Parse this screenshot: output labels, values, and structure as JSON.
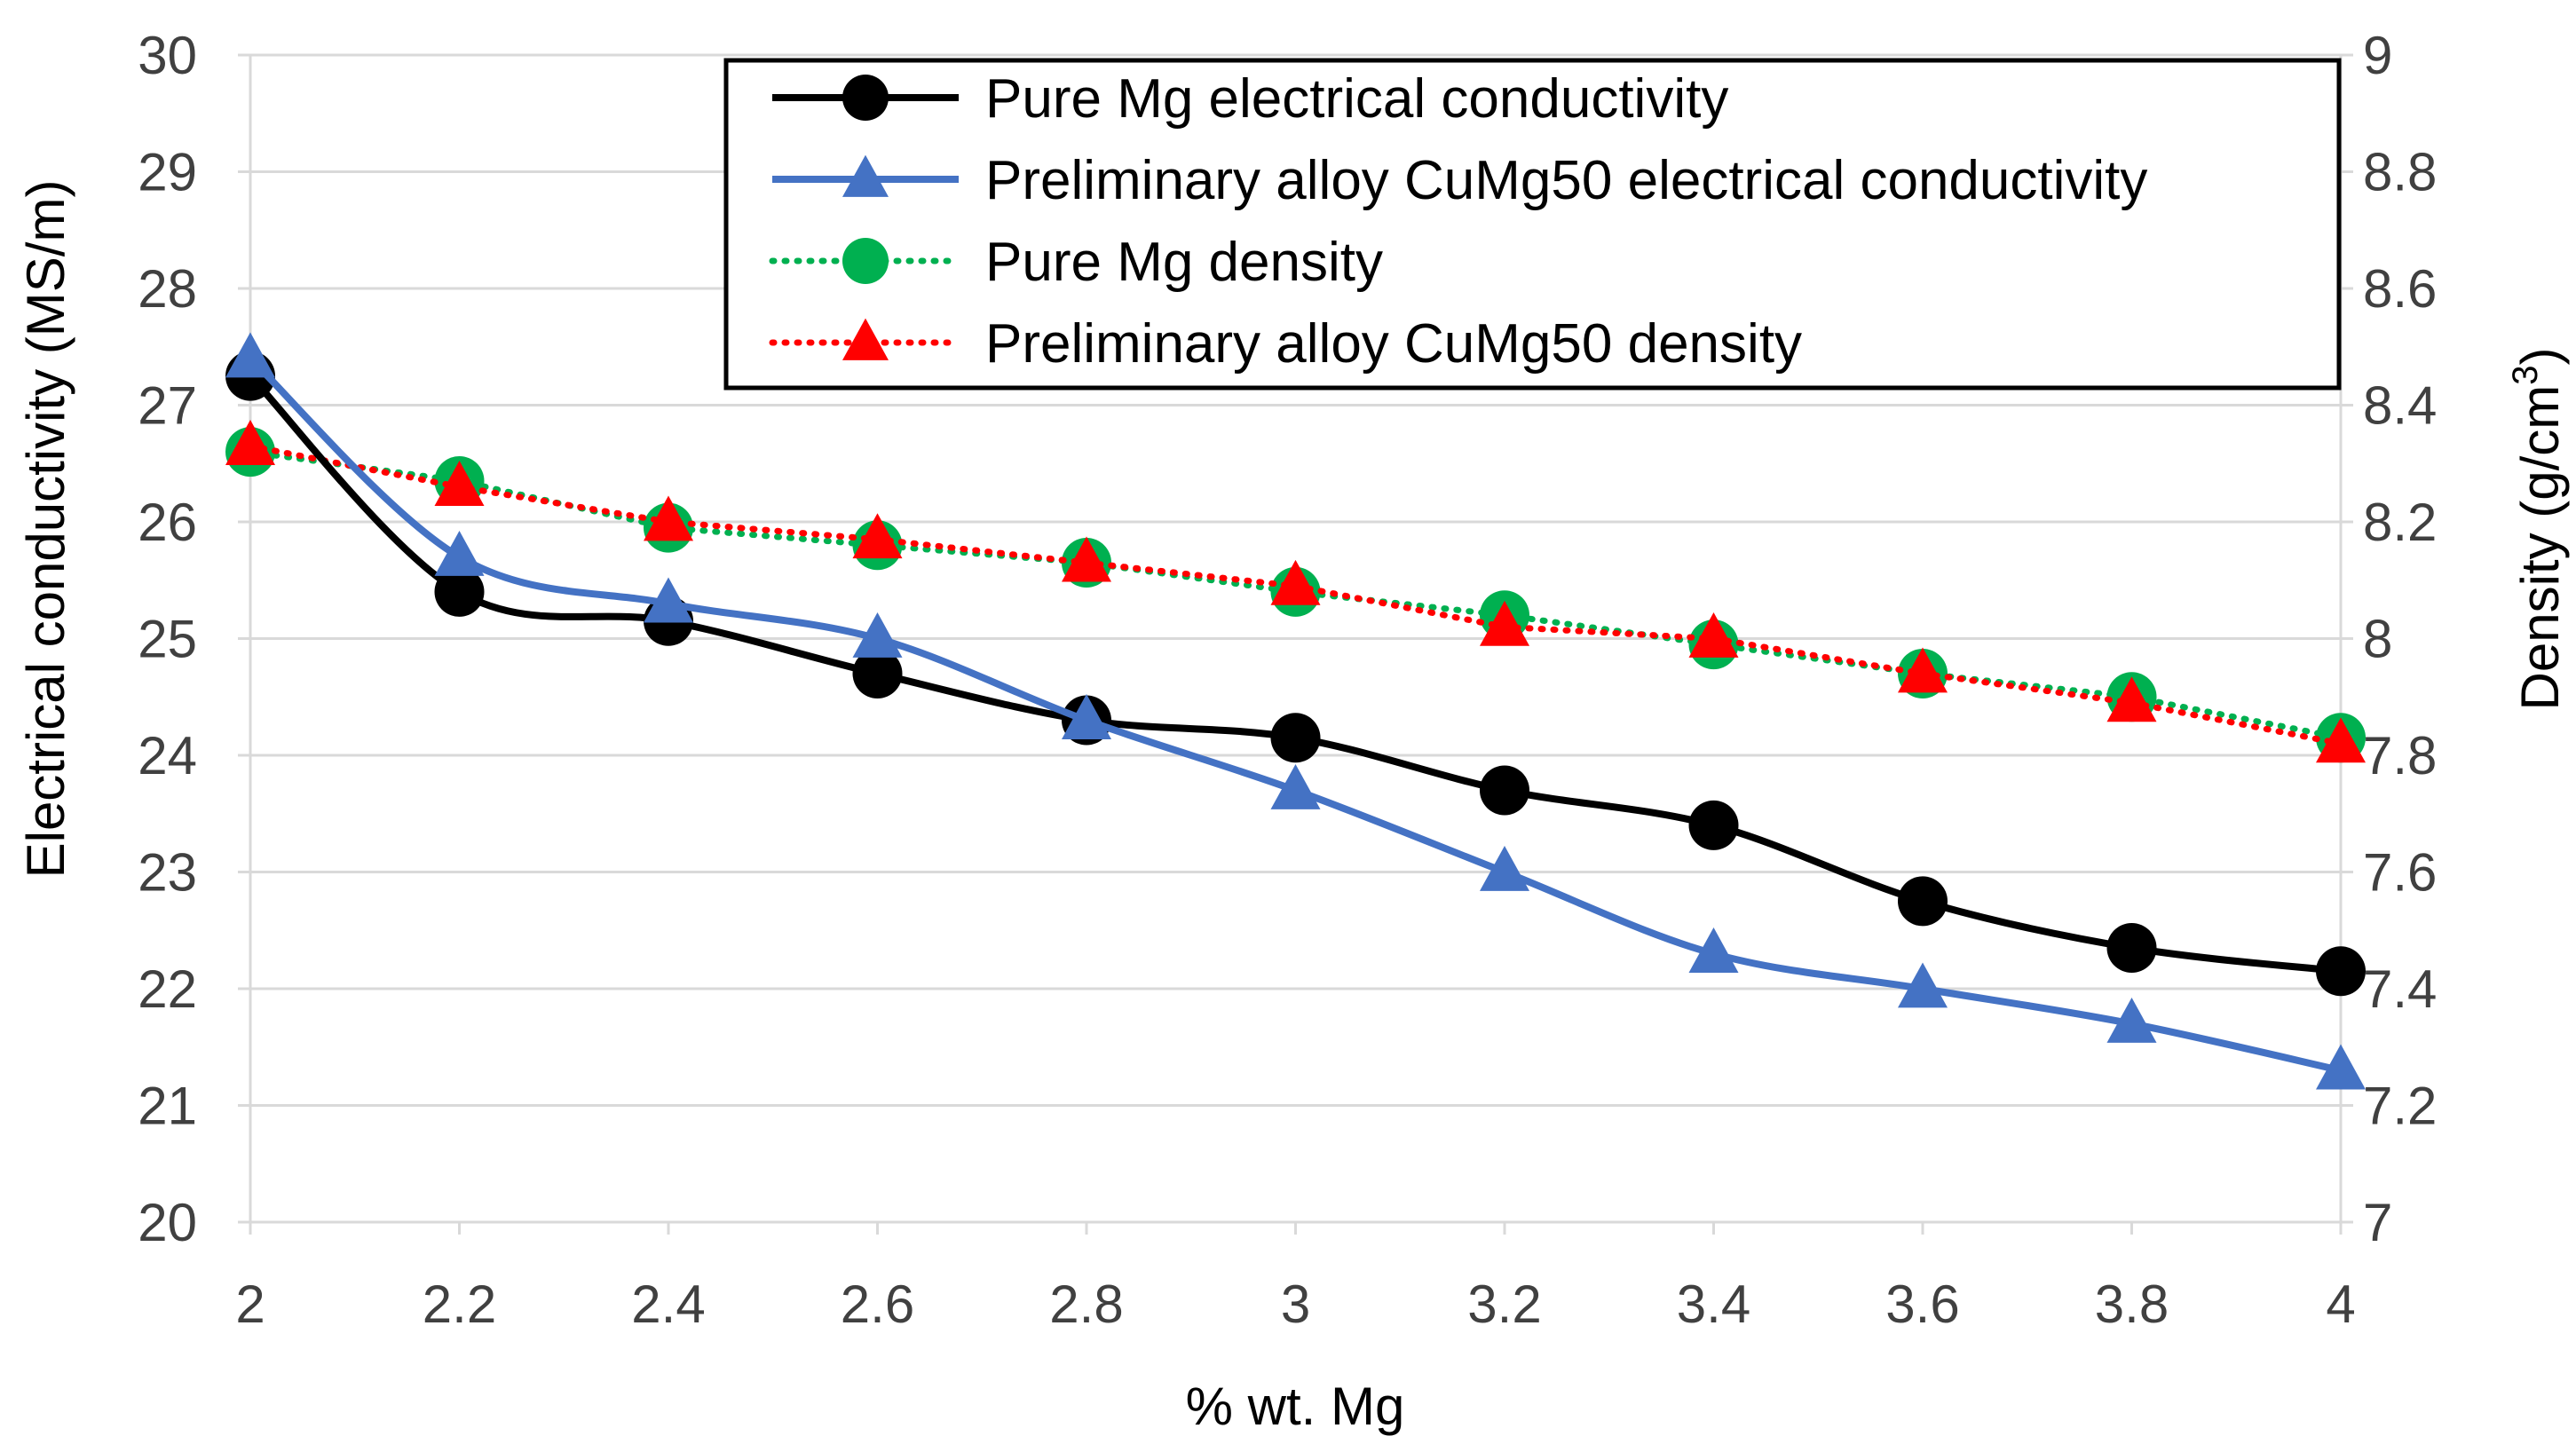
{
  "chart_data": {
    "type": "line",
    "x": [
      2,
      2.2,
      2.4,
      2.6,
      2.8,
      3,
      3.2,
      3.4,
      3.6,
      3.8,
      4
    ],
    "xlabel": "% wt. Mg",
    "xlim": [
      2,
      4
    ],
    "xticks": [
      "2",
      "2.2",
      "2.4",
      "2.6",
      "2.8",
      "3",
      "3.2",
      "3.4",
      "3.6",
      "3.8",
      "4"
    ],
    "ylabel_left": "Electrical conductivity (MS/m)",
    "ylim_left": [
      20,
      30
    ],
    "yticks_left": [
      "20",
      "21",
      "22",
      "23",
      "24",
      "25",
      "26",
      "27",
      "28",
      "29",
      "30"
    ],
    "ylabel_right": "Density  (g/cm",
    "ylabel_right_sup": "3",
    "ylabel_right_close": ")",
    "ylim_right": [
      7,
      9
    ],
    "yticks_right": [
      "7",
      "7.2",
      "7.4",
      "7.6",
      "7.8",
      "8",
      "8.2",
      "8.4",
      "8.6",
      "8.8",
      "9"
    ],
    "grid": true,
    "legend_position": "top-right",
    "series": [
      {
        "name": "Pure Mg electrical conductivity",
        "axis": "left",
        "color": "#000000",
        "line": "solid",
        "marker": "circle",
        "values": [
          27.25,
          25.4,
          25.15,
          24.7,
          24.3,
          24.15,
          23.7,
          23.4,
          22.75,
          22.35,
          22.15
        ]
      },
      {
        "name": "Preliminary alloy CuMg50 electrical conductivity",
        "axis": "left",
        "color": "#4472c4",
        "line": "solid",
        "marker": "triangle",
        "values": [
          27.4,
          25.7,
          25.3,
          25.0,
          24.3,
          23.7,
          23.0,
          22.3,
          22.0,
          21.7,
          21.3
        ]
      },
      {
        "name": "Pure Mg density",
        "axis": "right",
        "color": "#00b050",
        "line": "dotted",
        "marker": "circle",
        "values": [
          8.32,
          8.27,
          8.19,
          8.16,
          8.13,
          8.08,
          8.04,
          7.99,
          7.94,
          7.9,
          7.83
        ]
      },
      {
        "name": "Preliminary alloy CuMg50 density",
        "axis": "right",
        "color": "#ff0000",
        "line": "dotted",
        "marker": "triangle",
        "values": [
          8.33,
          8.26,
          8.2,
          8.17,
          8.13,
          8.09,
          8.02,
          8.0,
          7.94,
          7.89,
          7.82
        ]
      }
    ]
  }
}
